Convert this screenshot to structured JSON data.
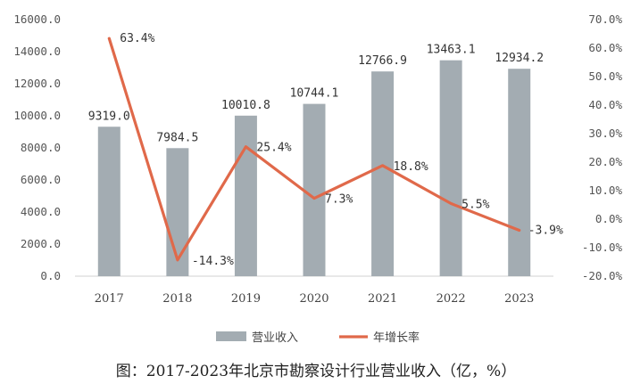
{
  "caption": "图：2017-2023年北京市勘察设计行业营业收入（亿，%）",
  "chart_data": {
    "type": "bar",
    "categories": [
      "2017",
      "2018",
      "2019",
      "2020",
      "2021",
      "2022",
      "2023"
    ],
    "series": [
      {
        "name": "营业收入",
        "type": "bar",
        "axis": "left",
        "color": "#a3acb2",
        "values": [
          9319.0,
          7984.5,
          10010.8,
          10744.1,
          12766.9,
          13463.1,
          12934.2
        ],
        "labels": [
          "9319.0",
          "7984.5",
          "10010.8",
          "10744.1",
          "12766.9",
          "13463.1",
          "12934.2"
        ]
      },
      {
        "name": "年增长率",
        "type": "line",
        "axis": "right",
        "color": "#e0694a",
        "values": [
          63.4,
          -14.3,
          25.4,
          7.3,
          18.8,
          5.5,
          -3.9
        ],
        "labels": [
          "63.4%",
          "-14.3%",
          "25.4%",
          "7.3%",
          "18.8%",
          "5.5%",
          "-3.9%"
        ]
      }
    ],
    "y_left": {
      "min": 0,
      "max": 16000,
      "ticks": [
        "0.0",
        "2000.0",
        "4000.0",
        "6000.0",
        "8000.0",
        "10000.0",
        "12000.0",
        "14000.0",
        "16000.0"
      ]
    },
    "y_right": {
      "min": -20,
      "max": 70,
      "ticks": [
        "-20.0%",
        "-10.0%",
        "0.0%",
        "10.0%",
        "20.0%",
        "30.0%",
        "40.0%",
        "50.0%",
        "60.0%",
        "70.0%"
      ]
    },
    "grid": false,
    "legend": "bottom"
  }
}
